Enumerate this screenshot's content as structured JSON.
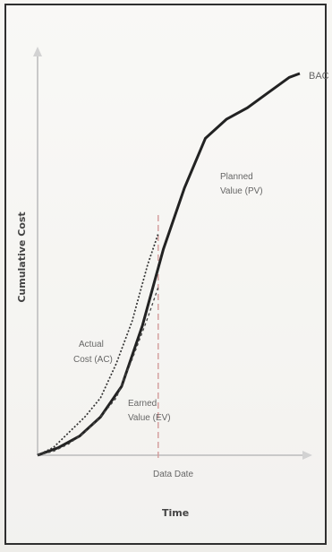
{
  "chart_data": {
    "type": "line",
    "title": "",
    "xlabel": "Time",
    "ylabel": "Cumulative Cost",
    "grid": false,
    "legend": "none",
    "x_tick_labels": [
      "Data Date"
    ],
    "annotations": [
      {
        "text": "BAC",
        "target": "planned_value"
      },
      {
        "text": "Planned",
        "target": "planned_value"
      },
      {
        "text": "Value (PV)",
        "target": "planned_value"
      },
      {
        "text": "Actual",
        "target": "actual_cost"
      },
      {
        "text": "Cost (AC)",
        "target": "actual_cost"
      },
      {
        "text": "Earned",
        "target": "earned_value"
      },
      {
        "text": "Value (EV)",
        "target": "earned_value"
      }
    ],
    "colors": {
      "axis": "#c9c9c9",
      "pv": "#222222",
      "ac": "#333333",
      "ev": "#444444",
      "data_date_line": "#d39a9a"
    },
    "series": [
      {
        "key": "planned_value",
        "style": "solid",
        "points": [
          [
            0.0,
            0.0
          ],
          [
            0.08,
            0.02
          ],
          [
            0.16,
            0.05
          ],
          [
            0.24,
            0.1
          ],
          [
            0.32,
            0.18
          ],
          [
            0.4,
            0.34
          ],
          [
            0.48,
            0.54
          ],
          [
            0.56,
            0.7
          ],
          [
            0.64,
            0.83
          ],
          [
            0.72,
            0.88
          ],
          [
            0.8,
            0.91
          ],
          [
            0.88,
            0.95
          ],
          [
            0.96,
            0.99
          ],
          [
            1.0,
            1.0
          ]
        ]
      },
      {
        "key": "actual_cost",
        "style": "dotted",
        "points": [
          [
            0.0,
            0.0
          ],
          [
            0.06,
            0.02
          ],
          [
            0.12,
            0.06
          ],
          [
            0.18,
            0.1
          ],
          [
            0.24,
            0.15
          ],
          [
            0.3,
            0.24
          ],
          [
            0.36,
            0.35
          ],
          [
            0.42,
            0.5
          ],
          [
            0.46,
            0.58
          ]
        ]
      },
      {
        "key": "earned_value",
        "style": "dashed",
        "points": [
          [
            0.0,
            0.0
          ],
          [
            0.06,
            0.01
          ],
          [
            0.12,
            0.03
          ],
          [
            0.18,
            0.06
          ],
          [
            0.24,
            0.1
          ],
          [
            0.3,
            0.15
          ],
          [
            0.36,
            0.25
          ],
          [
            0.42,
            0.36
          ],
          [
            0.46,
            0.44
          ]
        ]
      }
    ],
    "data_date_x": 0.46
  }
}
